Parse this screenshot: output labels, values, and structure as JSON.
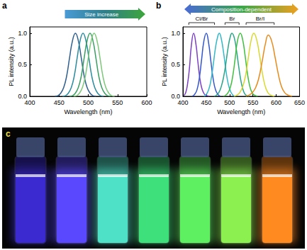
{
  "chart_data": [
    {
      "type": "line",
      "title": "a",
      "x_label": "Wavelength (nm)",
      "y_label": "PL intensity (a.u.)",
      "annotations": [
        "Size increase"
      ],
      "xlim": [
        400,
        600
      ],
      "xticks": [
        400,
        450,
        500,
        550,
        600
      ],
      "ylim": [
        0,
        1.1
      ],
      "yticks": [
        {
          "value": 0,
          "label": "0.0"
        },
        {
          "value": 0.5,
          "label": "0.5"
        },
        {
          "value": 1.0,
          "label": "1.0"
        }
      ],
      "grid": false,
      "series": [
        {
          "color": "#2f5f8f",
          "x": [
            443,
            448,
            453,
            458,
            463,
            468,
            473,
            478,
            483,
            488,
            493,
            498,
            503,
            508,
            513
          ],
          "values": [
            0,
            0.01,
            0.05,
            0.14,
            0.32,
            0.61,
            0.88,
            1,
            0.88,
            0.61,
            0.32,
            0.14,
            0.05,
            0.01,
            0
          ]
        },
        {
          "color": "#2a8c9e",
          "x": [
            456,
            461,
            466,
            471,
            476,
            481,
            486,
            491,
            496,
            501,
            506,
            511,
            516,
            521,
            526
          ],
          "values": [
            0,
            0.01,
            0.05,
            0.14,
            0.32,
            0.61,
            0.88,
            1,
            0.88,
            0.61,
            0.32,
            0.14,
            0.05,
            0.01,
            0
          ]
        },
        {
          "color": "#3a9f62",
          "x": [
            468,
            473,
            478,
            483,
            488,
            493,
            498,
            503,
            508,
            513,
            518,
            523,
            528,
            533,
            538
          ],
          "values": [
            0,
            0.01,
            0.05,
            0.14,
            0.32,
            0.61,
            0.88,
            1,
            0.88,
            0.61,
            0.32,
            0.14,
            0.05,
            0.01,
            0
          ]
        },
        {
          "color": "#7ec87a",
          "x": [
            475,
            480,
            485,
            490,
            495,
            500,
            505,
            510,
            515,
            520,
            525,
            530,
            535,
            540,
            545
          ],
          "values": [
            0,
            0.01,
            0.05,
            0.14,
            0.32,
            0.61,
            0.88,
            1,
            0.88,
            0.61,
            0.32,
            0.14,
            0.05,
            0.01,
            0
          ]
        }
      ]
    },
    {
      "type": "line",
      "title": "b",
      "x_label": "Wavelength (nm)",
      "y_label": "PL intensity (a.u.)",
      "annotations": [
        "Composition-dependent",
        "Cl/Br",
        "Br",
        "Br/I"
      ],
      "xlim": [
        400,
        650
      ],
      "xticks": [
        400,
        450,
        500,
        550,
        600,
        650
      ],
      "ylim": [
        0,
        1.1
      ],
      "yticks": [
        {
          "value": 0,
          "label": "0.0"
        },
        {
          "value": 0.5,
          "label": "0.5"
        },
        {
          "value": 1.0,
          "label": "1.0"
        }
      ],
      "grid": false,
      "series": [
        {
          "color": "#7b3fc4",
          "x": [
            402,
            406,
            410,
            414,
            418,
            423,
            428,
            432,
            436,
            440,
            444,
            448,
            452,
            456
          ],
          "values": [
            0.01,
            0.06,
            0.2,
            0.45,
            0.8,
            1,
            0.82,
            0.55,
            0.3,
            0.14,
            0.06,
            0.02,
            0.01,
            0
          ]
        },
        {
          "color": "#3355cc",
          "x": [
            420,
            425,
            430,
            435,
            440,
            445,
            450,
            455,
            460,
            465,
            470,
            475,
            480
          ],
          "values": [
            0,
            0.03,
            0.1,
            0.28,
            0.58,
            0.88,
            1,
            0.85,
            0.55,
            0.27,
            0.1,
            0.03,
            0
          ]
        },
        {
          "color": "#33b8c8",
          "x": [
            445,
            450,
            455,
            460,
            465,
            470,
            475,
            478,
            482,
            487,
            492,
            497,
            502,
            507,
            512
          ],
          "values": [
            0,
            0.03,
            0.1,
            0.25,
            0.5,
            0.78,
            0.96,
            1,
            0.92,
            0.7,
            0.42,
            0.2,
            0.08,
            0.02,
            0
          ]
        },
        {
          "color": "#2aa58a",
          "x": [
            467,
            472,
            477,
            482,
            487,
            492,
            497,
            502,
            505,
            510,
            515,
            520,
            525,
            530,
            535,
            542
          ],
          "values": [
            0,
            0.02,
            0.06,
            0.15,
            0.3,
            0.52,
            0.78,
            0.96,
            1,
            0.93,
            0.72,
            0.45,
            0.22,
            0.08,
            0.02,
            0
          ]
        },
        {
          "color": "#3fbf3f",
          "x": [
            487,
            492,
            497,
            502,
            507,
            512,
            517,
            523,
            528,
            533,
            538,
            543,
            548,
            553,
            560
          ],
          "values": [
            0,
            0.02,
            0.06,
            0.15,
            0.33,
            0.6,
            0.88,
            1,
            0.9,
            0.66,
            0.38,
            0.17,
            0.06,
            0.02,
            0
          ]
        },
        {
          "color": "#d8d830",
          "x": [
            510,
            516,
            522,
            528,
            534,
            540,
            546,
            552,
            558,
            564,
            570,
            576,
            582,
            588,
            596
          ],
          "values": [
            0,
            0.02,
            0.06,
            0.15,
            0.32,
            0.6,
            0.88,
            1,
            0.9,
            0.66,
            0.38,
            0.17,
            0.06,
            0.02,
            0
          ]
        },
        {
          "color": "#e88a1a",
          "x": [
            535,
            542,
            549,
            556,
            563,
            570,
            577,
            583,
            590,
            597,
            604,
            611,
            618,
            625,
            634
          ],
          "values": [
            0,
            0.02,
            0.06,
            0.14,
            0.3,
            0.56,
            0.84,
            0.97,
            0.88,
            0.64,
            0.37,
            0.16,
            0.06,
            0.02,
            0
          ]
        }
      ]
    }
  ],
  "photo": {
    "label": "c",
    "colors": [
      "#3a2ad0",
      "#5a48ff",
      "#4fe0c8",
      "#3de07a",
      "#5ef060",
      "#8cf050",
      "#ff8a20"
    ]
  }
}
